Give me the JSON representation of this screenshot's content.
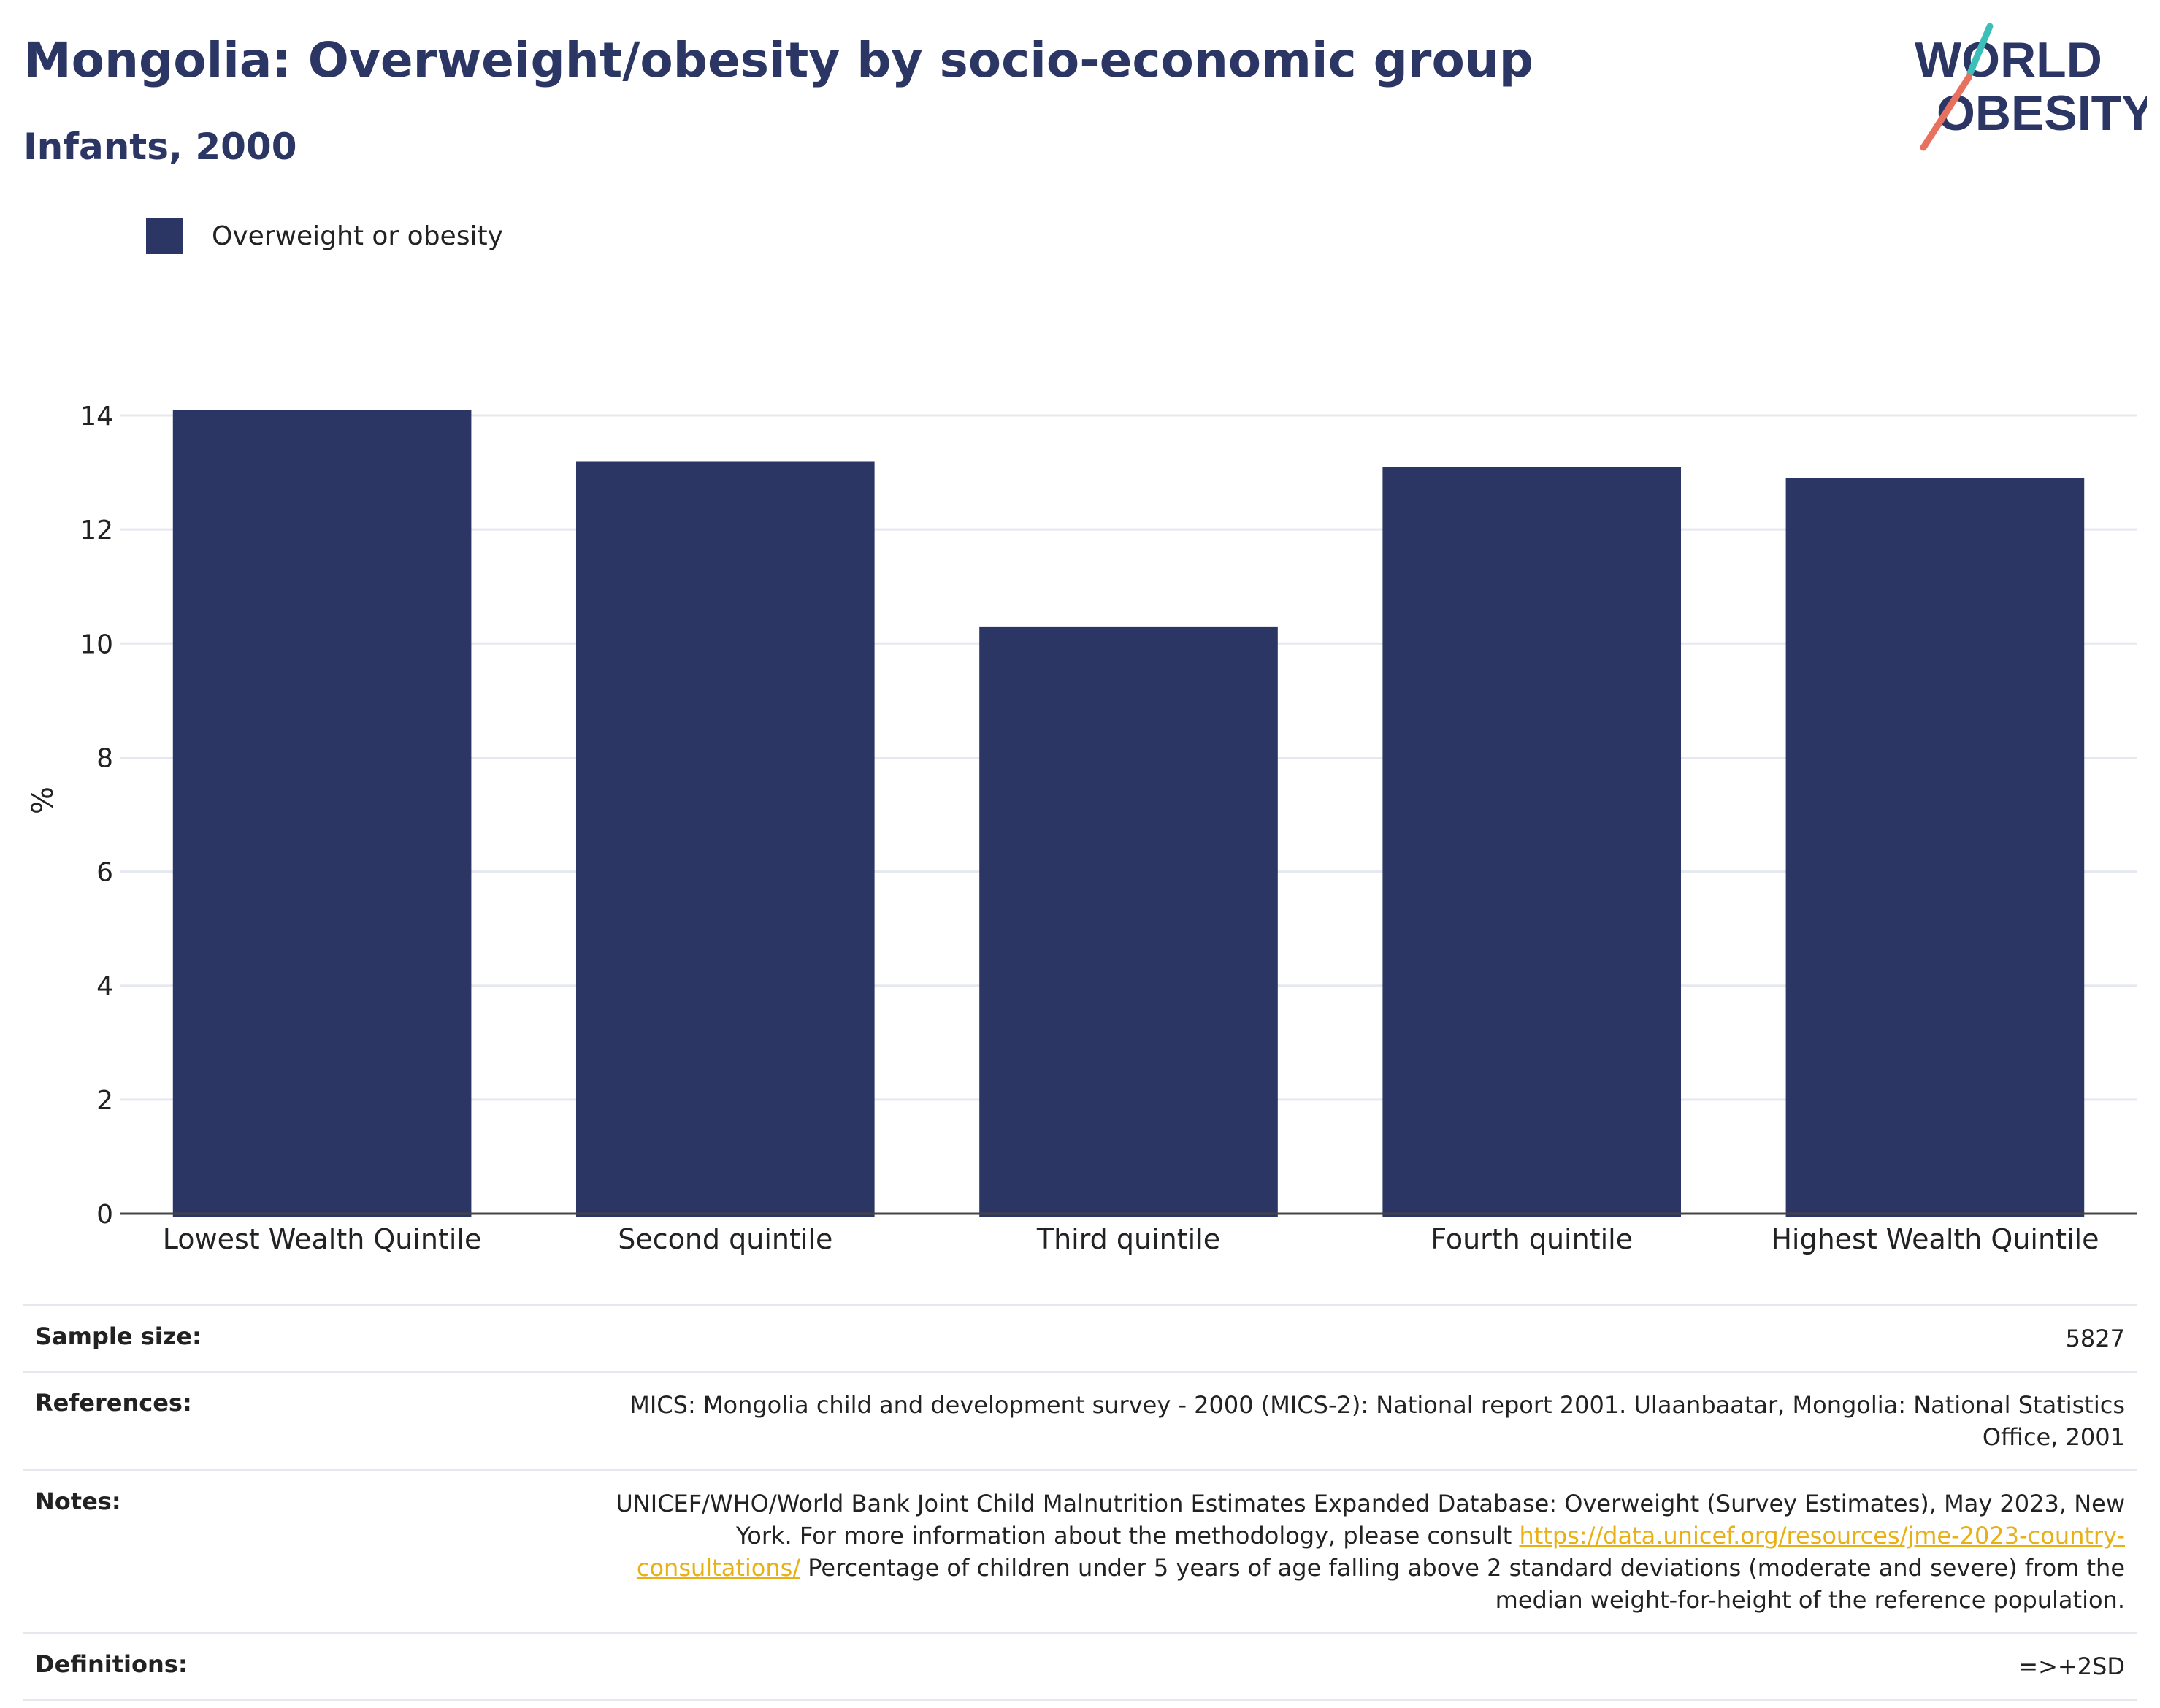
{
  "title": "Mongolia: Overweight/obesity by socio-economic group",
  "subtitle": "Infants, 2000",
  "logo": {
    "line1": "WORLD",
    "line2": "OBESITY"
  },
  "colors": {
    "bar": "#2b3664",
    "title": "#2b3664",
    "link": "#e8b015",
    "grid": "#e6e8f0"
  },
  "legend": {
    "label": "Overweight or obesity"
  },
  "chart_data": {
    "type": "bar",
    "categories": [
      "Lowest Wealth Quintile",
      "Second quintile",
      "Third quintile",
      "Fourth quintile",
      "Highest Wealth Quintile"
    ],
    "series": [
      {
        "name": "Overweight or obesity",
        "values": [
          14.1,
          13.2,
          10.3,
          13.1,
          12.9
        ]
      }
    ],
    "ylabel": "%",
    "xlabel": "",
    "ylim": [
      0,
      14.5
    ],
    "yticks": [
      0,
      2,
      4,
      6,
      8,
      10,
      12,
      14
    ],
    "grid": true
  },
  "info": {
    "sample_size": {
      "label": "Sample size:",
      "value": "5827"
    },
    "references": {
      "label": "References:",
      "value": "MICS: Mongolia child and development survey - 2000 (MICS-2): National report 2001. Ulaanbaatar, Mongolia: National Statistics Office, 2001"
    },
    "notes": {
      "label": "Notes:",
      "text_before": "UNICEF/WHO/World Bank Joint Child Malnutrition Estimates Expanded Database: Overweight (Survey Estimates), May 2023, New York. For more information about the methodology, please consult ",
      "link": "https://data.unicef.org/resources/jme-2023-country-consultations/",
      "text_after": " Percentage of children under 5 years of age falling above 2 standard deviations (moderate and severe) from the median weight-for-height of the reference population."
    },
    "definitions": {
      "label": "Definitions:",
      "value": "=>+2SD"
    }
  }
}
